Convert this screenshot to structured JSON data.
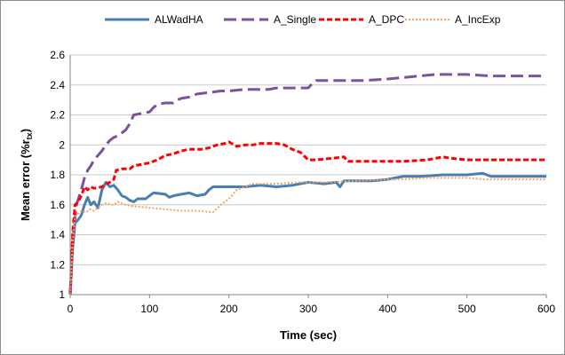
{
  "chart_data": {
    "type": "line",
    "xlabel": "Time (sec)",
    "ylabel": "Mean error (%r",
    "ylabel_sub": "tx",
    "ylabel_suffix": ")",
    "xlim": [
      0,
      600
    ],
    "ylim": [
      1,
      2.6
    ],
    "xticks": [
      "0",
      "100",
      "200",
      "300",
      "400",
      "500",
      "600"
    ],
    "yticks": [
      "1",
      "1.2",
      "1.4",
      "1.6",
      "1.8",
      "2",
      "2.2",
      "2.4",
      "2.6"
    ],
    "grid": "horizontal",
    "legend_position": "top",
    "series": [
      {
        "name": "ALWadHA",
        "color": "#4a7eb0",
        "dash": "solid",
        "points": [
          [
            0,
            1.0
          ],
          [
            3,
            1.3
          ],
          [
            6,
            1.48
          ],
          [
            10,
            1.5
          ],
          [
            14,
            1.53
          ],
          [
            18,
            1.6
          ],
          [
            22,
            1.65
          ],
          [
            26,
            1.6
          ],
          [
            30,
            1.62
          ],
          [
            35,
            1.58
          ],
          [
            40,
            1.7
          ],
          [
            45,
            1.75
          ],
          [
            50,
            1.72
          ],
          [
            55,
            1.73
          ],
          [
            60,
            1.7
          ],
          [
            65,
            1.66
          ],
          [
            70,
            1.65
          ],
          [
            75,
            1.63
          ],
          [
            80,
            1.62
          ],
          [
            85,
            1.64
          ],
          [
            95,
            1.64
          ],
          [
            100,
            1.66
          ],
          [
            105,
            1.68
          ],
          [
            120,
            1.67
          ],
          [
            125,
            1.65
          ],
          [
            130,
            1.66
          ],
          [
            140,
            1.67
          ],
          [
            150,
            1.68
          ],
          [
            160,
            1.66
          ],
          [
            170,
            1.67
          ],
          [
            175,
            1.7
          ],
          [
            180,
            1.72
          ],
          [
            200,
            1.72
          ],
          [
            220,
            1.72
          ],
          [
            240,
            1.73
          ],
          [
            260,
            1.72
          ],
          [
            280,
            1.73
          ],
          [
            300,
            1.75
          ],
          [
            320,
            1.74
          ],
          [
            335,
            1.75
          ],
          [
            340,
            1.72
          ],
          [
            345,
            1.76
          ],
          [
            380,
            1.76
          ],
          [
            400,
            1.77
          ],
          [
            420,
            1.79
          ],
          [
            440,
            1.79
          ],
          [
            470,
            1.8
          ],
          [
            500,
            1.8
          ],
          [
            520,
            1.81
          ],
          [
            525,
            1.8
          ],
          [
            530,
            1.79
          ],
          [
            560,
            1.79
          ],
          [
            600,
            1.79
          ]
        ]
      },
      {
        "name": "A_Single",
        "color": "#7b539c",
        "dash": "long",
        "points": [
          [
            0,
            1.0
          ],
          [
            3,
            1.35
          ],
          [
            8,
            1.6
          ],
          [
            14,
            1.7
          ],
          [
            18,
            1.78
          ],
          [
            22,
            1.83
          ],
          [
            26,
            1.86
          ],
          [
            30,
            1.9
          ],
          [
            35,
            1.93
          ],
          [
            40,
            1.96
          ],
          [
            45,
            2.0
          ],
          [
            50,
            2.03
          ],
          [
            55,
            2.05
          ],
          [
            60,
            2.06
          ],
          [
            65,
            2.08
          ],
          [
            70,
            2.1
          ],
          [
            75,
            2.14
          ],
          [
            80,
            2.2
          ],
          [
            90,
            2.21
          ],
          [
            100,
            2.22
          ],
          [
            105,
            2.25
          ],
          [
            110,
            2.27
          ],
          [
            120,
            2.28
          ],
          [
            130,
            2.28
          ],
          [
            135,
            2.3
          ],
          [
            140,
            2.31
          ],
          [
            150,
            2.32
          ],
          [
            160,
            2.34
          ],
          [
            175,
            2.35
          ],
          [
            190,
            2.36
          ],
          [
            200,
            2.36
          ],
          [
            220,
            2.37
          ],
          [
            250,
            2.37
          ],
          [
            260,
            2.38
          ],
          [
            280,
            2.38
          ],
          [
            300,
            2.38
          ],
          [
            305,
            2.41
          ],
          [
            310,
            2.43
          ],
          [
            340,
            2.43
          ],
          [
            370,
            2.43
          ],
          [
            400,
            2.44
          ],
          [
            420,
            2.45
          ],
          [
            440,
            2.46
          ],
          [
            460,
            2.47
          ],
          [
            500,
            2.47
          ],
          [
            530,
            2.46
          ],
          [
            560,
            2.46
          ],
          [
            600,
            2.46
          ]
        ]
      },
      {
        "name": "A_DPC",
        "color": "#ff0000",
        "dash": "dash",
        "points": [
          [
            0,
            1.0
          ],
          [
            3,
            1.4
          ],
          [
            6,
            1.6
          ],
          [
            10,
            1.62
          ],
          [
            14,
            1.66
          ],
          [
            18,
            1.72
          ],
          [
            22,
            1.7
          ],
          [
            26,
            1.72
          ],
          [
            30,
            1.71
          ],
          [
            40,
            1.72
          ],
          [
            45,
            1.74
          ],
          [
            50,
            1.75
          ],
          [
            55,
            1.77
          ],
          [
            58,
            1.83
          ],
          [
            65,
            1.84
          ],
          [
            75,
            1.84
          ],
          [
            80,
            1.86
          ],
          [
            90,
            1.87
          ],
          [
            100,
            1.88
          ],
          [
            110,
            1.9
          ],
          [
            120,
            1.93
          ],
          [
            130,
            1.94
          ],
          [
            140,
            1.96
          ],
          [
            150,
            1.97
          ],
          [
            165,
            1.97
          ],
          [
            175,
            1.98
          ],
          [
            185,
            2.0
          ],
          [
            195,
            2.01
          ],
          [
            200,
            2.02
          ],
          [
            210,
            1.99
          ],
          [
            220,
            2.0
          ],
          [
            230,
            2.0
          ],
          [
            240,
            2.01
          ],
          [
            260,
            2.01
          ],
          [
            270,
            2.0
          ],
          [
            280,
            1.97
          ],
          [
            290,
            1.95
          ],
          [
            300,
            1.9
          ],
          [
            310,
            1.9
          ],
          [
            330,
            1.91
          ],
          [
            345,
            1.92
          ],
          [
            350,
            1.89
          ],
          [
            380,
            1.89
          ],
          [
            420,
            1.89
          ],
          [
            450,
            1.9
          ],
          [
            470,
            1.92
          ],
          [
            480,
            1.91
          ],
          [
            500,
            1.9
          ],
          [
            560,
            1.9
          ],
          [
            600,
            1.9
          ]
        ]
      },
      {
        "name": "A_IncExp",
        "color": "#f5a25c",
        "dash": "dot",
        "points": [
          [
            0,
            1.0
          ],
          [
            3,
            1.35
          ],
          [
            6,
            1.52
          ],
          [
            10,
            1.54
          ],
          [
            15,
            1.56
          ],
          [
            20,
            1.55
          ],
          [
            25,
            1.57
          ],
          [
            30,
            1.56
          ],
          [
            35,
            1.58
          ],
          [
            40,
            1.6
          ],
          [
            45,
            1.61
          ],
          [
            55,
            1.6
          ],
          [
            60,
            1.62
          ],
          [
            70,
            1.6
          ],
          [
            80,
            1.59
          ],
          [
            100,
            1.58
          ],
          [
            120,
            1.57
          ],
          [
            140,
            1.56
          ],
          [
            160,
            1.56
          ],
          [
            180,
            1.55
          ],
          [
            190,
            1.6
          ],
          [
            200,
            1.64
          ],
          [
            210,
            1.7
          ],
          [
            220,
            1.72
          ],
          [
            230,
            1.74
          ],
          [
            260,
            1.74
          ],
          [
            290,
            1.75
          ],
          [
            320,
            1.75
          ],
          [
            360,
            1.76
          ],
          [
            400,
            1.77
          ],
          [
            420,
            1.77
          ],
          [
            450,
            1.78
          ],
          [
            480,
            1.78
          ],
          [
            500,
            1.78
          ],
          [
            520,
            1.77
          ],
          [
            600,
            1.77
          ]
        ]
      }
    ]
  }
}
